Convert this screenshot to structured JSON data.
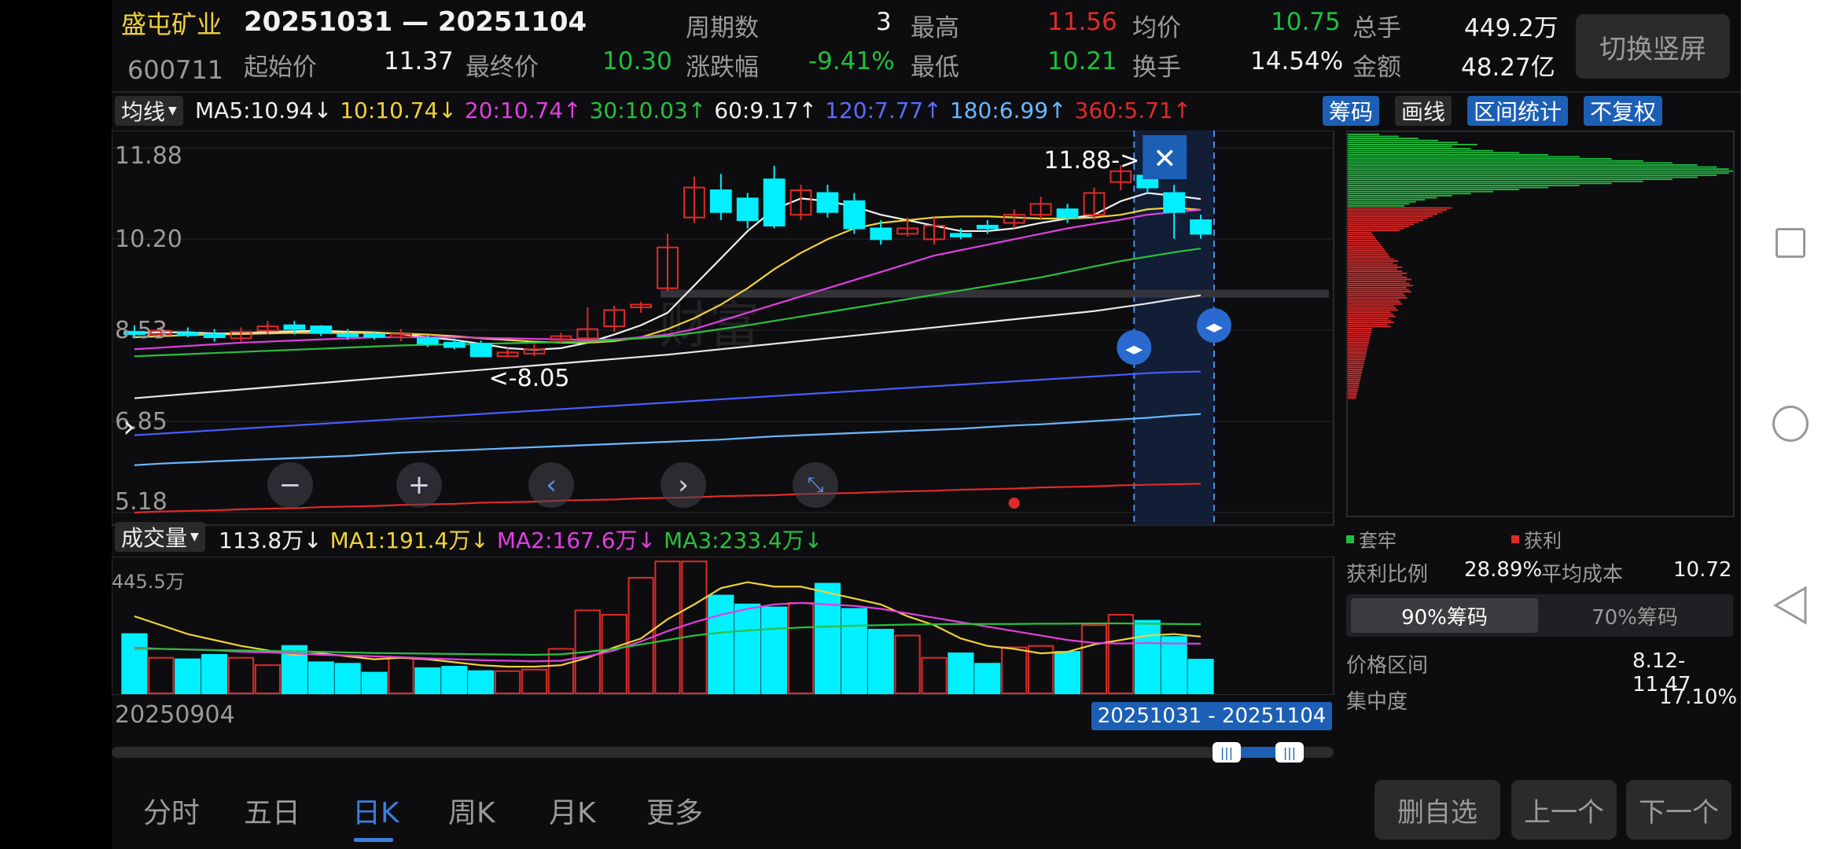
{
  "header": {
    "stock_name": "盛屯矿业",
    "stock_code": "600711",
    "date_range": "20251031 — 20251104",
    "start_label": "起始价",
    "start_value": "11.37",
    "end_label": "最终价",
    "end_value": "10.30",
    "period_label": "周期数",
    "period_value": "3",
    "change_label": "涨跌幅",
    "change_value": "-9.41%",
    "high_label": "最高",
    "high_value": "11.56",
    "low_label": "最低",
    "low_value": "10.21",
    "avg_label": "均价",
    "avg_value": "10.75",
    "turnover_label": "换手",
    "turnover_value": "14.54%",
    "vol_label": "总手",
    "vol_value": "449.2万",
    "amount_label": "金额",
    "amount_value": "48.27亿",
    "switch_button": "切换竖屏"
  },
  "ma_bar": {
    "selector": "均线",
    "items": [
      {
        "text": "MA5:10.94↓",
        "color": "#f0f0f0"
      },
      {
        "text": "10:10.74↓",
        "color": "#f0d13a"
      },
      {
        "text": "20:10.74↑",
        "color": "#e040e0"
      },
      {
        "text": "30:10.03↑",
        "color": "#2bbf3f"
      },
      {
        "text": "60:9.17↑",
        "color": "#f0f0f0"
      },
      {
        "text": "120:7.77↑",
        "color": "#5a6cff"
      },
      {
        "text": "180:6.99↑",
        "color": "#6ab8ff"
      },
      {
        "text": "360:5.71↑",
        "color": "#e02a2a"
      }
    ],
    "tools": [
      "筹码",
      "画线",
      "区间统计",
      "不复权"
    ]
  },
  "price_axis": [
    "11.88",
    "10.20",
    "8.53",
    "6.85",
    "5.18"
  ],
  "price_annotations": {
    "max_label": "11.88->",
    "min_label": "<-8.05"
  },
  "watermark": "财富",
  "volume_bar": {
    "selector": "成交量",
    "items": [
      {
        "text": "113.8万↓",
        "color": "#f0f0f0"
      },
      {
        "text": "MA1:191.4万↓",
        "color": "#f0d13a"
      },
      {
        "text": "MA2:167.6万↓",
        "color": "#e040e0"
      },
      {
        "text": "MA3:233.4万↓",
        "color": "#2bbf3f"
      }
    ],
    "axis_max": "445.5万"
  },
  "range": {
    "start_date": "20250904",
    "selection": "20251031 - 20251104"
  },
  "chip_panel": {
    "legend_trapped": "套牢",
    "legend_profit": "获利",
    "profit_ratio_label": "获利比例",
    "profit_ratio": "28.89%",
    "avg_cost_label": "平均成本",
    "avg_cost": "10.72",
    "tab_90": "90%筹码",
    "tab_70": "70%筹码",
    "price_range_label": "价格区间",
    "price_range": "8.12-11.47",
    "concentration_label": "集中度",
    "concentration": "17.10%"
  },
  "tabs": [
    "分时",
    "五日",
    "日K",
    "周K",
    "月K",
    "更多"
  ],
  "active_tab": "日K",
  "actions": [
    "删自选",
    "上一个",
    "下一个"
  ],
  "colors": {
    "up": "#e02a2a",
    "down": "#00f0ff",
    "accent": "#1d5fb4"
  },
  "chart_data": {
    "type": "candlestick",
    "dates_first": "20250904",
    "price_range": [
      5.18,
      11.88
    ],
    "candles": [
      {
        "o": 8.5,
        "c": 8.48,
        "h": 8.62,
        "l": 8.38
      },
      {
        "o": 8.45,
        "c": 8.52,
        "h": 8.6,
        "l": 8.38
      },
      {
        "o": 8.48,
        "c": 8.46,
        "h": 8.58,
        "l": 8.4
      },
      {
        "o": 8.46,
        "c": 8.4,
        "h": 8.55,
        "l": 8.32
      },
      {
        "o": 8.38,
        "c": 8.5,
        "h": 8.58,
        "l": 8.32
      },
      {
        "o": 8.52,
        "c": 8.6,
        "h": 8.7,
        "l": 8.45
      },
      {
        "o": 8.62,
        "c": 8.55,
        "h": 8.7,
        "l": 8.45
      },
      {
        "o": 8.6,
        "c": 8.48,
        "h": 8.62,
        "l": 8.42
      },
      {
        "o": 8.46,
        "c": 8.42,
        "h": 8.55,
        "l": 8.35
      },
      {
        "o": 8.45,
        "c": 8.43,
        "h": 8.5,
        "l": 8.36
      },
      {
        "o": 8.4,
        "c": 8.46,
        "h": 8.55,
        "l": 8.33
      },
      {
        "o": 8.38,
        "c": 8.28,
        "h": 8.44,
        "l": 8.22
      },
      {
        "o": 8.3,
        "c": 8.22,
        "h": 8.38,
        "l": 8.18
      },
      {
        "o": 8.28,
        "c": 8.05,
        "h": 8.34,
        "l": 8.05
      },
      {
        "o": 8.05,
        "c": 8.12,
        "h": 8.2,
        "l": 8.05
      },
      {
        "o": 8.1,
        "c": 8.18,
        "h": 8.28,
        "l": 8.05
      },
      {
        "o": 8.35,
        "c": 8.42,
        "h": 8.48,
        "l": 8.3
      },
      {
        "o": 8.38,
        "c": 8.55,
        "h": 8.95,
        "l": 8.36
      },
      {
        "o": 8.6,
        "c": 8.9,
        "h": 8.98,
        "l": 8.5
      },
      {
        "o": 8.95,
        "c": 9.0,
        "h": 9.05,
        "l": 8.85
      },
      {
        "o": 9.3,
        "c": 10.05,
        "h": 10.3,
        "l": 9.25
      },
      {
        "o": 10.6,
        "c": 11.15,
        "h": 11.35,
        "l": 10.5
      },
      {
        "o": 11.1,
        "c": 10.7,
        "h": 11.4,
        "l": 10.55
      },
      {
        "o": 10.95,
        "c": 10.55,
        "h": 11.05,
        "l": 10.4
      },
      {
        "o": 11.3,
        "c": 10.45,
        "h": 11.55,
        "l": 10.4
      },
      {
        "o": 10.65,
        "c": 11.1,
        "h": 11.2,
        "l": 10.55
      },
      {
        "o": 11.05,
        "c": 10.7,
        "h": 11.2,
        "l": 10.6
      },
      {
        "o": 10.9,
        "c": 10.4,
        "h": 11.05,
        "l": 10.3
      },
      {
        "o": 10.4,
        "c": 10.2,
        "h": 10.55,
        "l": 10.1
      },
      {
        "o": 10.3,
        "c": 10.4,
        "h": 10.6,
        "l": 10.25
      },
      {
        "o": 10.2,
        "c": 10.45,
        "h": 10.6,
        "l": 10.1
      },
      {
        "o": 10.3,
        "c": 10.25,
        "h": 10.4,
        "l": 10.2
      },
      {
        "o": 10.45,
        "c": 10.4,
        "h": 10.55,
        "l": 10.3
      },
      {
        "o": 10.5,
        "c": 10.65,
        "h": 10.75,
        "l": 10.4
      },
      {
        "o": 10.65,
        "c": 10.85,
        "h": 10.98,
        "l": 10.55
      },
      {
        "o": 10.75,
        "c": 10.6,
        "h": 10.85,
        "l": 10.5
      },
      {
        "o": 10.65,
        "c": 11.05,
        "h": 11.15,
        "l": 10.55
      },
      {
        "o": 11.25,
        "c": 11.45,
        "h": 11.56,
        "l": 11.1
      },
      {
        "o": 11.37,
        "c": 11.15,
        "h": 11.88,
        "l": 11.05
      },
      {
        "o": 11.05,
        "c": 10.7,
        "h": 11.2,
        "l": 10.21
      },
      {
        "o": 10.55,
        "c": 10.3,
        "h": 10.65,
        "l": 10.21
      }
    ],
    "ma_series": {
      "MA5": [
        8.48,
        8.49,
        8.49,
        8.47,
        8.47,
        8.5,
        8.51,
        8.52,
        8.5,
        8.49,
        8.46,
        8.4,
        8.35,
        8.28,
        8.2,
        8.17,
        8.2,
        8.3,
        8.45,
        8.62,
        8.85,
        9.35,
        9.85,
        10.35,
        10.75,
        10.95,
        10.9,
        10.8,
        10.65,
        10.55,
        10.45,
        10.35,
        10.35,
        10.4,
        10.5,
        10.58,
        10.65,
        10.9,
        11.05,
        11.0,
        10.94
      ],
      "MA10": [
        8.4,
        8.42,
        8.44,
        8.45,
        8.46,
        8.47,
        8.48,
        8.48,
        8.48,
        8.48,
        8.47,
        8.45,
        8.42,
        8.38,
        8.35,
        8.32,
        8.3,
        8.3,
        8.33,
        8.4,
        8.55,
        8.75,
        9.0,
        9.3,
        9.65,
        9.95,
        10.2,
        10.4,
        10.5,
        10.55,
        10.6,
        10.62,
        10.62,
        10.6,
        10.58,
        10.58,
        10.6,
        10.65,
        10.75,
        10.78,
        10.74
      ],
      "MA20": [
        8.18,
        8.21,
        8.24,
        8.27,
        8.3,
        8.32,
        8.34,
        8.36,
        8.38,
        8.4,
        8.4,
        8.4,
        8.4,
        8.39,
        8.38,
        8.37,
        8.36,
        8.35,
        8.36,
        8.4,
        8.45,
        8.55,
        8.7,
        8.85,
        9.0,
        9.15,
        9.3,
        9.45,
        9.6,
        9.75,
        9.9,
        10.0,
        10.1,
        10.2,
        10.3,
        10.4,
        10.48,
        10.56,
        10.65,
        10.7,
        10.74
      ],
      "MA30": [
        8.05,
        8.07,
        8.09,
        8.11,
        8.13,
        8.15,
        8.17,
        8.19,
        8.21,
        8.23,
        8.25,
        8.26,
        8.27,
        8.28,
        8.29,
        8.3,
        8.31,
        8.32,
        8.35,
        8.38,
        8.42,
        8.48,
        8.55,
        8.62,
        8.7,
        8.78,
        8.86,
        8.94,
        9.02,
        9.1,
        9.18,
        9.26,
        9.34,
        9.42,
        9.5,
        9.6,
        9.7,
        9.8,
        9.88,
        9.96,
        10.03
      ],
      "MA60": [
        7.28,
        7.32,
        7.36,
        7.4,
        7.44,
        7.48,
        7.52,
        7.56,
        7.6,
        7.64,
        7.68,
        7.72,
        7.76,
        7.8,
        7.84,
        7.88,
        7.92,
        7.96,
        8.0,
        8.04,
        8.08,
        8.13,
        8.18,
        8.23,
        8.28,
        8.33,
        8.38,
        8.43,
        8.48,
        8.53,
        8.58,
        8.63,
        8.68,
        8.73,
        8.78,
        8.83,
        8.88,
        8.95,
        9.02,
        9.1,
        9.17
      ],
      "MA120": [
        6.6,
        6.63,
        6.66,
        6.69,
        6.72,
        6.75,
        6.78,
        6.81,
        6.84,
        6.87,
        6.9,
        6.93,
        6.96,
        6.99,
        7.02,
        7.05,
        7.08,
        7.11,
        7.14,
        7.17,
        7.2,
        7.23,
        7.26,
        7.29,
        7.32,
        7.35,
        7.38,
        7.41,
        7.44,
        7.47,
        7.5,
        7.53,
        7.56,
        7.59,
        7.62,
        7.65,
        7.68,
        7.71,
        7.74,
        7.76,
        7.77
      ],
      "MA180": [
        6.05,
        6.08,
        6.1,
        6.12,
        6.14,
        6.16,
        6.18,
        6.2,
        6.22,
        6.25,
        6.28,
        6.3,
        6.32,
        6.34,
        6.36,
        6.38,
        6.4,
        6.42,
        6.44,
        6.46,
        6.48,
        6.5,
        6.52,
        6.55,
        6.58,
        6.6,
        6.62,
        6.64,
        6.66,
        6.68,
        6.7,
        6.72,
        6.75,
        6.78,
        6.8,
        6.83,
        6.86,
        6.89,
        6.92,
        6.96,
        6.99
      ],
      "MA360": [
        5.18,
        5.2,
        5.21,
        5.22,
        5.24,
        5.25,
        5.26,
        5.28,
        5.29,
        5.3,
        5.32,
        5.33,
        5.34,
        5.36,
        5.37,
        5.38,
        5.4,
        5.41,
        5.42,
        5.44,
        5.45,
        5.46,
        5.48,
        5.49,
        5.5,
        5.52,
        5.53,
        5.54,
        5.56,
        5.57,
        5.58,
        5.6,
        5.61,
        5.62,
        5.64,
        5.65,
        5.66,
        5.68,
        5.69,
        5.7,
        5.71
      ]
    },
    "volume_max": 445.5,
    "volume": [
      200,
      120,
      115,
      130,
      120,
      95,
      160,
      105,
      100,
      70,
      120,
      85,
      90,
      75,
      75,
      80,
      150,
      280,
      265,
      390,
      445,
      445,
      330,
      300,
      290,
      305,
      370,
      285,
      215,
      195,
      120,
      135,
      100,
      155,
      160,
      140,
      230,
      265,
      245,
      190,
      113.8
    ],
    "vol_ma1": [
      260,
      230,
      200,
      180,
      160,
      145,
      130,
      135,
      125,
      115,
      120,
      115,
      105,
      95,
      90,
      90,
      95,
      120,
      155,
      185,
      250,
      300,
      355,
      375,
      360,
      360,
      340,
      320,
      300,
      260,
      230,
      185,
      160,
      150,
      135,
      140,
      165,
      180,
      195,
      200,
      191.4
    ],
    "vol_ma2": [
      155,
      150,
      148,
      145,
      140,
      138,
      135,
      130,
      128,
      125,
      122,
      118,
      115,
      112,
      110,
      108,
      110,
      125,
      145,
      175,
      210,
      240,
      265,
      285,
      300,
      305,
      300,
      295,
      285,
      270,
      255,
      240,
      225,
      210,
      195,
      180,
      170,
      168,
      170,
      168,
      167.6
    ],
    "vol_ma3": [
      150,
      150,
      148,
      146,
      145,
      143,
      142,
      140,
      138,
      136,
      135,
      134,
      133,
      132,
      131,
      130,
      132,
      140,
      150,
      165,
      180,
      195,
      205,
      212,
      218,
      222,
      225,
      228,
      230,
      232,
      233,
      234,
      234,
      234,
      235,
      235,
      236,
      236,
      235,
      234,
      233.4
    ]
  }
}
